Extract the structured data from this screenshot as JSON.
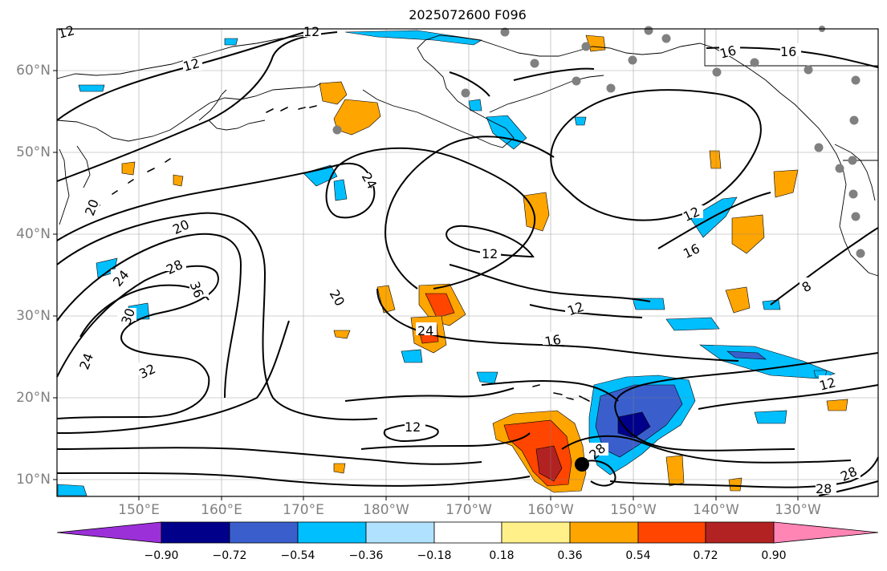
{
  "title": "2025072600 F096",
  "lat_labels": [
    "60°N",
    "50°N",
    "40°N",
    "30°N",
    "20°N",
    "10°N"
  ],
  "lon_labels": [
    "150°E",
    "160°E",
    "170°E",
    "180°W",
    "170°W",
    "160°W",
    "150°W",
    "140°W",
    "130°W"
  ],
  "contour_labels": [
    "12",
    "12",
    "16",
    "16",
    "24",
    "20",
    "20",
    "28",
    "24",
    "36",
    "30",
    "24",
    "32",
    "12",
    "20",
    "24",
    "12",
    "16",
    "12",
    "16",
    "12",
    "8",
    "12",
    "28",
    "28",
    "28",
    "12"
  ],
  "colorbar": {
    "colors": [
      "#9b30d9",
      "#00008b",
      "#3a5fcd",
      "#00bfff",
      "#b0e2ff",
      "#ffffff",
      "#fff08a",
      "#ffa500",
      "#ff4500",
      "#b22222",
      "#ff85b5"
    ],
    "ticks": [
      "−0.90",
      "−0.72",
      "−0.54",
      "−0.36",
      "−0.18",
      "0.18",
      "0.36",
      "0.54",
      "0.72",
      "0.90"
    ]
  },
  "colors": {
    "coast": "#000000",
    "contour": "#000000",
    "grid": "#808080",
    "station": "#808080",
    "storm_marker": "#000000"
  }
}
